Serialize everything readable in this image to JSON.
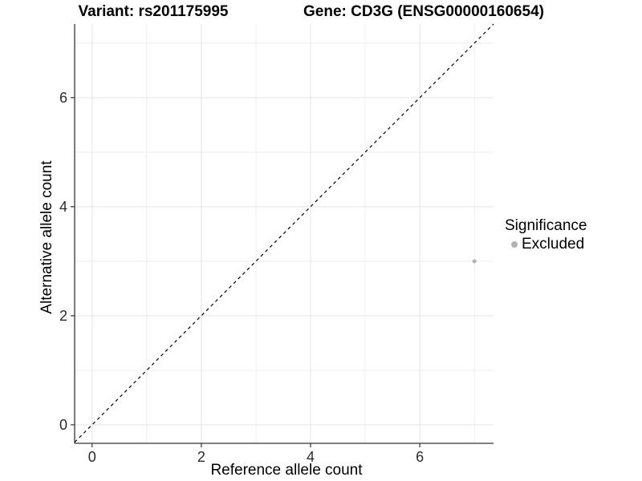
{
  "header": {
    "variant_title": "Variant: rs201175995",
    "gene_title": "Gene: CD3G (ENSG00000160654)"
  },
  "legend": {
    "title": "Significance",
    "items": [
      {
        "label": "Excluded",
        "color": "#b2b2b2"
      }
    ]
  },
  "chart_data": {
    "type": "scatter",
    "xlabel": "Reference allele count",
    "ylabel": "Alternative allele count",
    "xlim": [
      -0.32,
      7.35
    ],
    "ylim": [
      -0.34,
      7.35
    ],
    "x_ticks": [
      0,
      2,
      4,
      6
    ],
    "y_ticks": [
      0,
      2,
      4,
      6
    ],
    "grid_major": [
      0,
      2,
      4,
      6
    ],
    "grid_minor": [
      1,
      3,
      5,
      7
    ],
    "points": [
      {
        "x": 7,
        "y": 3,
        "significance": "Excluded",
        "color": "#b2b2b2"
      }
    ],
    "abline": {
      "slope": 1,
      "intercept": 0,
      "style": "dashed",
      "color": "#000000"
    },
    "legend_position": "right",
    "grid": true,
    "colors": {
      "grid_major": "#e4e4e4",
      "grid_minor": "#eeeeee",
      "axis_line": "#333333",
      "tick_mark": "#333333",
      "tick_text": "#2b2b2b",
      "background": "#ffffff"
    }
  }
}
